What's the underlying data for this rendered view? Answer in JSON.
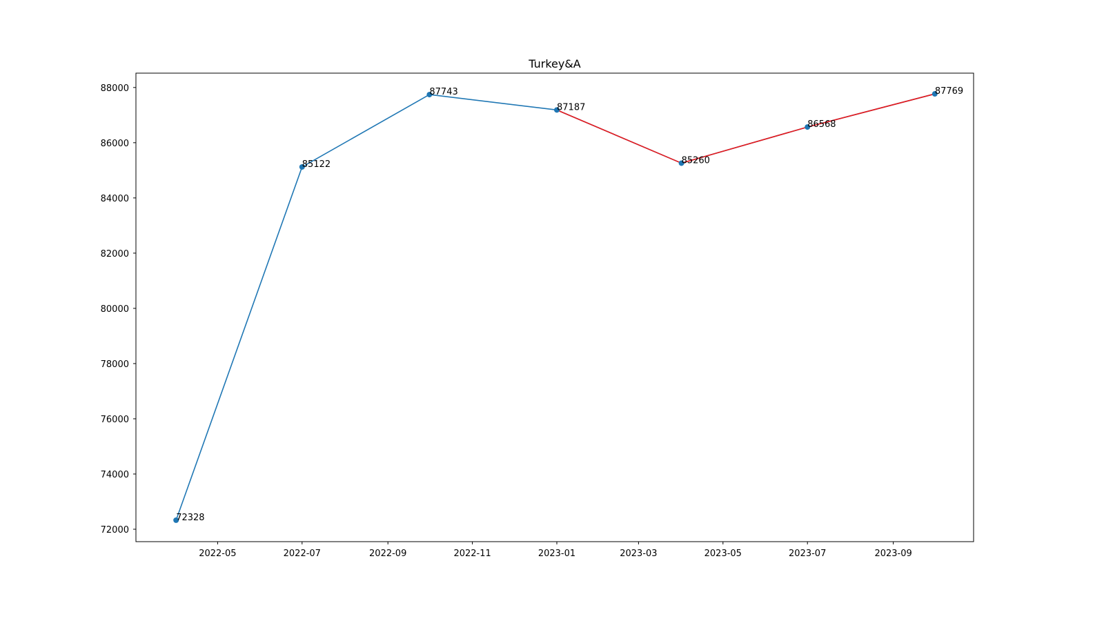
{
  "chart_data": {
    "type": "line",
    "title": "Turkey&A",
    "xlabel": "",
    "ylabel": "",
    "grid": false,
    "x": [
      "2022-04-01",
      "2022-07-01",
      "2022-10-01",
      "2023-01-01",
      "2023-04-01",
      "2023-07-01",
      "2023-10-01"
    ],
    "values": [
      72328,
      85122,
      87743,
      87187,
      85260,
      86568,
      87769
    ],
    "data_labels": [
      "72328",
      "85122",
      "87743",
      "87187",
      "85260",
      "86568",
      "87769"
    ],
    "highlight_from_index": 3,
    "colors": {
      "line": "#1f77b4",
      "marker": "#1f77b4",
      "highlight": "#e8191c"
    },
    "yticks": [
      "72000",
      "74000",
      "76000",
      "78000",
      "80000",
      "82000",
      "84000",
      "86000",
      "88000"
    ],
    "xticks": [
      "2022-05",
      "2022-07",
      "2022-09",
      "2022-11",
      "2023-01",
      "2023-03",
      "2023-05",
      "2023-07",
      "2023-09"
    ],
    "ylim": [
      71550,
      88520
    ],
    "xlim": [
      "2022-03-03",
      "2023-10-29"
    ]
  }
}
